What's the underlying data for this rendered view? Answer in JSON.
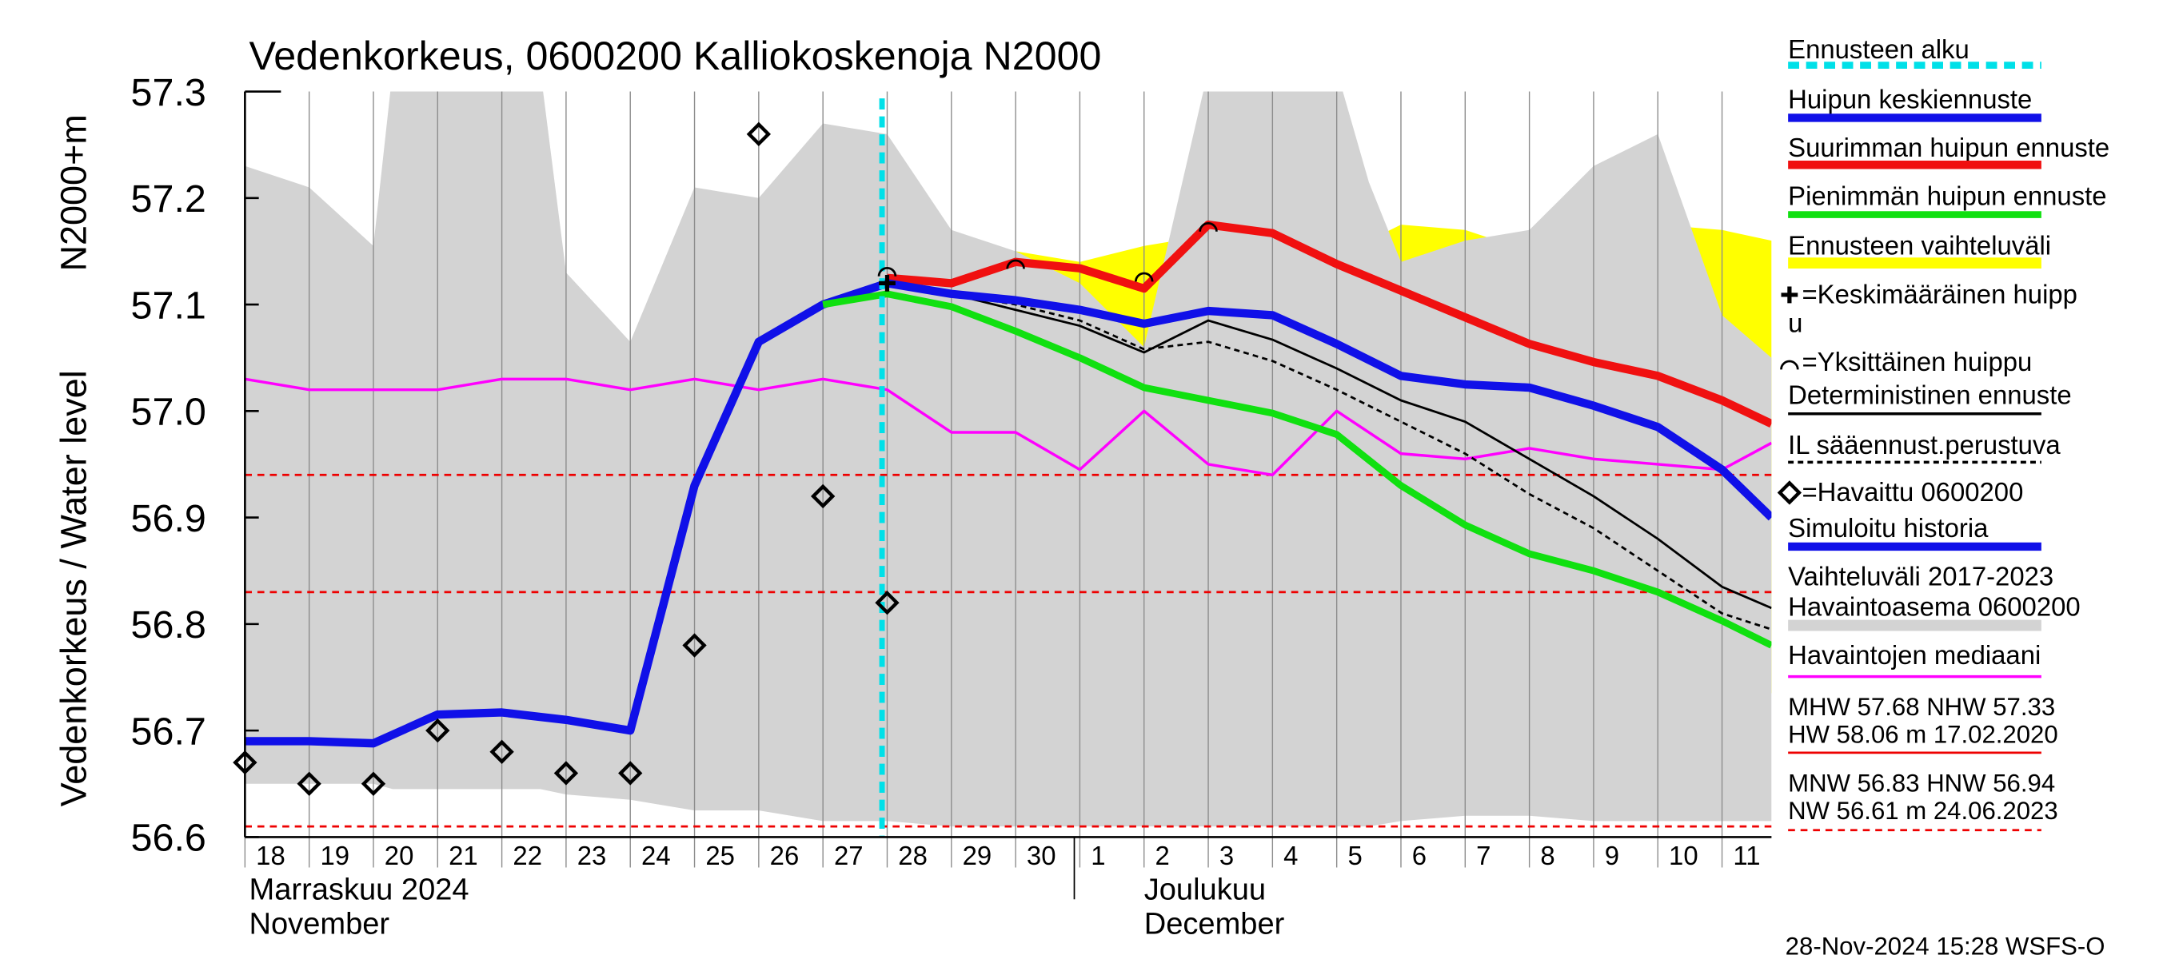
{
  "chart_data": {
    "type": "line",
    "title": "Vedenkorkeus, 0600200 Kalliokoskenoja N2000",
    "y_label": "Vedenkorkeus / Water level",
    "y_label_unit": "N2000+m",
    "ylim": [
      56.6,
      57.3
    ],
    "yticks": [
      56.6,
      56.7,
      56.8,
      56.9,
      {
        "value": 57,
        "label": "57.0"
      },
      57.1,
      57.2,
      57.3
    ],
    "xlim": [
      0,
      23.77
    ],
    "xticks": [
      {
        "value": 0,
        "label": "18"
      },
      {
        "value": 1,
        "label": "19"
      },
      {
        "value": 2,
        "label": "20"
      },
      {
        "value": 3,
        "label": "21"
      },
      {
        "value": 4,
        "label": "22"
      },
      {
        "value": 5,
        "label": "23"
      },
      {
        "value": 6,
        "label": "24"
      },
      {
        "value": 7,
        "label": "25"
      },
      {
        "value": 8,
        "label": "26"
      },
      {
        "value": 9,
        "label": "27"
      },
      {
        "value": 10,
        "label": "28"
      },
      {
        "value": 11,
        "label": "29"
      },
      {
        "value": 12,
        "label": "30"
      },
      {
        "value": 13,
        "label": "1"
      },
      {
        "value": 14,
        "label": "2"
      },
      {
        "value": 15,
        "label": "3"
      },
      {
        "value": 16,
        "label": "4"
      },
      {
        "value": 17,
        "label": "5"
      },
      {
        "value": 18,
        "label": "6"
      },
      {
        "value": 19,
        "label": "7"
      },
      {
        "value": 20,
        "label": "8"
      },
      {
        "value": 21,
        "label": "9"
      },
      {
        "value": 22,
        "label": "10"
      },
      {
        "value": 23,
        "label": "11"
      }
    ],
    "x_groups": [
      [
        "Marraskuu 2024",
        "November"
      ],
      [
        "Joulukuu",
        "December"
      ]
    ],
    "grid": true,
    "series": [
      {
        "name": "Ennusteen alku",
        "kind": "vline",
        "color": "#00e0e8",
        "x": 9.92
      },
      {
        "name": "Huipun keskiennuste",
        "kind": "line",
        "color": "#1010e8",
        "width": 6,
        "x": [
          10,
          11,
          12,
          13,
          14,
          15,
          16,
          17,
          18,
          19,
          20,
          21,
          22,
          23,
          23.77
        ],
        "values": [
          57.12,
          57.11,
          57.104,
          57.095,
          57.082,
          57.094,
          57.09,
          57.063,
          57.033,
          57.025,
          57.022,
          57.005,
          56.985,
          56.945,
          56.9
        ]
      },
      {
        "name": "Suurimman huipun ennuste",
        "kind": "line",
        "color": "#f01010",
        "width": 6,
        "x": [
          10,
          11,
          12,
          13,
          14,
          15,
          16,
          17,
          18,
          19,
          20,
          21,
          22,
          23,
          23.77
        ],
        "values": [
          57.125,
          57.12,
          57.14,
          57.134,
          57.115,
          57.175,
          57.167,
          57.138,
          57.113,
          57.088,
          57.063,
          57.046,
          57.033,
          57.01,
          56.988
        ]
      },
      {
        "name": "Pienimmän huipun ennuste",
        "kind": "line",
        "color": "#10e010",
        "width": 5,
        "x": [
          9,
          10,
          11,
          12,
          13,
          14,
          15,
          16,
          17,
          18,
          19,
          20,
          21,
          22,
          23,
          23.77
        ],
        "values": [
          57.1,
          57.11,
          57.098,
          57.075,
          57.05,
          57.022,
          57.01,
          56.998,
          56.978,
          56.93,
          56.893,
          56.866,
          56.85,
          56.83,
          56.803,
          56.78
        ]
      },
      {
        "name": "Ennusteen vaihteluväli",
        "kind": "band",
        "color": "#ffff00",
        "x": [
          9,
          10,
          11,
          12,
          13,
          14,
          15,
          16,
          17,
          18,
          19,
          20,
          21,
          22,
          23,
          23.77
        ],
        "upper": [
          57.11,
          57.15,
          57.145,
          57.15,
          57.14,
          57.155,
          57.165,
          57.14,
          57.145,
          57.175,
          57.17,
          57.15,
          57.17,
          57.175,
          57.17,
          57.16
        ],
        "lower": [
          57.1,
          57.1,
          57.09,
          57.07,
          57.04,
          57.02,
          57.0,
          56.98,
          56.94,
          56.89,
          56.85,
          56.855,
          56.83,
          56.79,
          56.76,
          56.735
        ]
      },
      {
        "name": [
          "=Keskimääräinen huipp",
          "u"
        ],
        "kind": "marker",
        "symbol": "plus",
        "color": "#000000",
        "x": [
          10
        ],
        "values": [
          57.12
        ]
      },
      {
        "name": "=Yksittäinen huippu",
        "kind": "marker",
        "symbol": "arc",
        "color": "#000000",
        "x": [
          10,
          12,
          14,
          15
        ],
        "values": [
          57.133,
          57.14,
          57.128,
          57.175
        ]
      },
      {
        "name": "Deterministinen ennuste",
        "kind": "line",
        "color": "#000000",
        "width": 1.6,
        "x": [
          10,
          11,
          12,
          13,
          14,
          15,
          16,
          17,
          18,
          19,
          20,
          21,
          22,
          23,
          23.77
        ],
        "values": [
          57.12,
          57.11,
          57.095,
          57.08,
          57.055,
          57.085,
          57.067,
          57.04,
          57.01,
          56.99,
          56.955,
          56.92,
          56.88,
          56.835,
          56.815
        ]
      },
      {
        "name": "IL sääennust.perustuva",
        "kind": "line",
        "color": "#000000",
        "width": 1.6,
        "dash": true,
        "x": [
          10,
          11,
          12,
          13,
          14,
          15,
          16,
          17,
          18,
          19,
          20,
          21,
          22,
          23,
          23.77
        ],
        "values": [
          57.12,
          57.11,
          57.1,
          57.085,
          57.058,
          57.065,
          57.047,
          57.02,
          56.99,
          56.96,
          56.922,
          56.89,
          56.85,
          56.81,
          56.795
        ]
      },
      {
        "name": "=Havaittu 0600200",
        "kind": "marker",
        "symbol": "diamond",
        "color": "#000000",
        "x": [
          0,
          1,
          2,
          3,
          4,
          5,
          6,
          7,
          8,
          9,
          10
        ],
        "values": [
          56.67,
          56.65,
          56.65,
          56.7,
          56.68,
          56.66,
          56.66,
          56.78,
          57.26,
          56.92,
          56.82
        ]
      },
      {
        "name": "Simuloitu historia",
        "kind": "line",
        "color": "#1010e8",
        "width": 6,
        "x": [
          0,
          1,
          2,
          3,
          4,
          5,
          6,
          7,
          8,
          9,
          10
        ],
        "values": [
          56.69,
          56.69,
          56.688,
          56.715,
          56.717,
          56.71,
          56.7,
          56.93,
          57.065,
          57.1,
          57.12
        ]
      },
      {
        "name": [
          "Vaihteluväli 2017-2023",
          " Havaintoasema 0600200"
        ],
        "kind": "band",
        "color": "#d3d3d3",
        "x": [
          0,
          1,
          2,
          2.3,
          4.6,
          5,
          6,
          7,
          8,
          9,
          10,
          11,
          12,
          13,
          14,
          15,
          17,
          17.5,
          18,
          19,
          20,
          21,
          22,
          23,
          23.77
        ],
        "upper": [
          57.23,
          57.21,
          57.155,
          57.32,
          57.32,
          57.13,
          57.065,
          57.21,
          57.2,
          57.27,
          57.26,
          57.17,
          57.15,
          57.12,
          57.06,
          57.32,
          57.32,
          57.215,
          57.14,
          57.16,
          57.17,
          57.23,
          57.26,
          57.09,
          57.05
        ],
        "lower": [
          56.65,
          56.65,
          56.65,
          56.645,
          56.645,
          56.64,
          56.635,
          56.625,
          56.625,
          56.615,
          56.615,
          56.61,
          56.61,
          56.61,
          56.61,
          56.61,
          56.61,
          56.61,
          56.615,
          56.62,
          56.62,
          56.615,
          56.615,
          56.615,
          56.615
        ]
      },
      {
        "name": "Havaintojen mediaani",
        "kind": "line",
        "color": "#ff00ff",
        "width": 2,
        "x": [
          0,
          1,
          2,
          3,
          4,
          5,
          6,
          7,
          8,
          9,
          10,
          11,
          12,
          13,
          14,
          15,
          16,
          17,
          18,
          19,
          20,
          21,
          22,
          23,
          23.77
        ],
        "values": [
          57.03,
          57.02,
          57.02,
          57.02,
          57.03,
          57.03,
          57.02,
          57.03,
          57.02,
          57.03,
          57.02,
          56.98,
          56.98,
          56.945,
          57.0,
          56.95,
          56.94,
          57.0,
          56.96,
          56.955,
          56.965,
          56.955,
          56.95,
          56.945,
          56.97
        ]
      }
    ],
    "hlines": [
      {
        "value": 56.94,
        "color": "#ee0000"
      },
      {
        "value": 56.83,
        "color": "#ee0000"
      },
      {
        "value": 56.61,
        "color": "#ee0000"
      }
    ],
    "stats": [
      {
        "lines": [
          "MHW  57.68 NHW  57.33",
          "HW  58.06 m 17.02.2020"
        ],
        "color": "#ee0000",
        "dash": false
      },
      {
        "lines": [
          "MNW  56.83 HNW  56.94",
          "NW  56.61 m 24.06.2023"
        ],
        "color": "#ee0000",
        "dash": true
      }
    ],
    "footer": "28-Nov-2024 15:28 WSFS-O"
  }
}
